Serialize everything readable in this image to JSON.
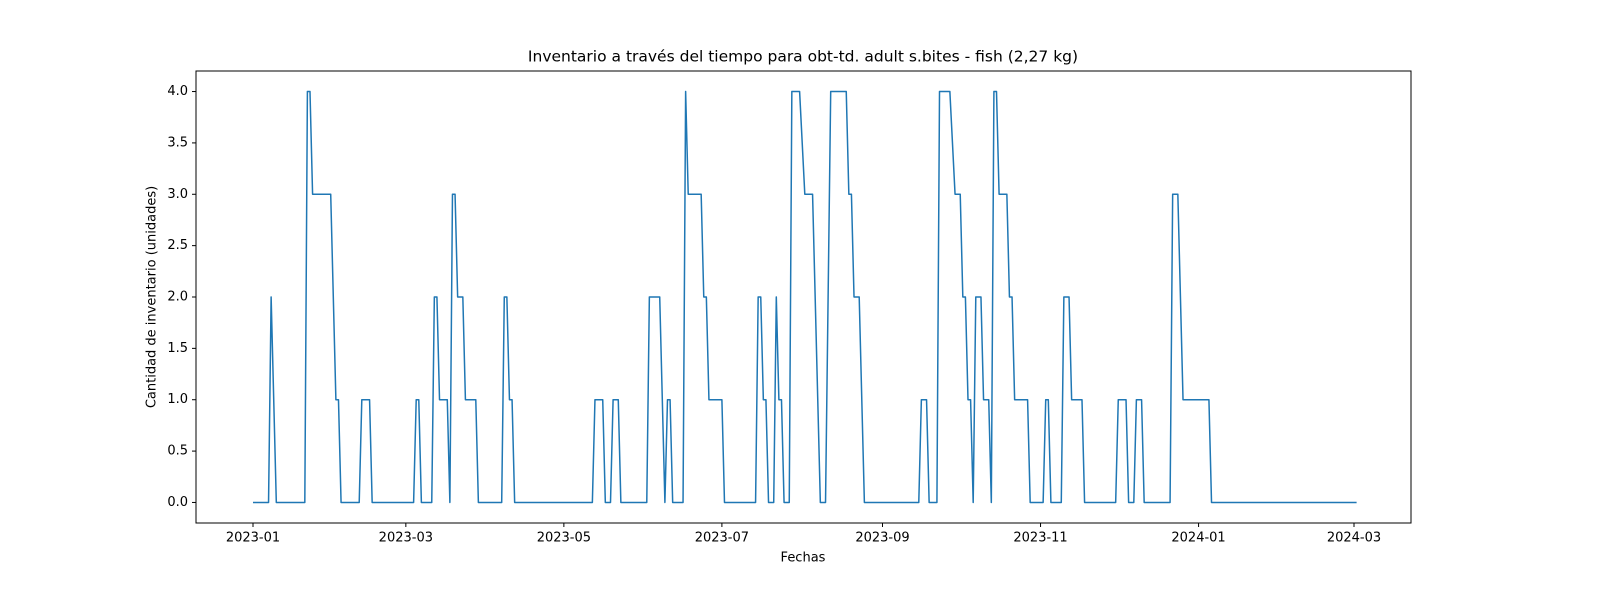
{
  "chart_data": {
    "type": "line",
    "title": "Inventario a través del tiempo para obt-td. adult s.bites - fish (2,27 kg)",
    "x_label": "Fechas",
    "y_label": "Cantidad de inventario (unidades)",
    "x": [
      "2023-01-01",
      "2023-01-07",
      "2023-01-08",
      "2023-01-10",
      "2023-01-21",
      "2023-01-22",
      "2023-01-23",
      "2023-01-24",
      "2023-01-31",
      "2023-02-02",
      "2023-02-03",
      "2023-02-04",
      "2023-02-11",
      "2023-02-12",
      "2023-02-15",
      "2023-02-16",
      "2023-03-04",
      "2023-03-05",
      "2023-03-06",
      "2023-03-07",
      "2023-03-11",
      "2023-03-12",
      "2023-03-13",
      "2023-03-14",
      "2023-03-17",
      "2023-03-18",
      "2023-03-19",
      "2023-03-20",
      "2023-03-21",
      "2023-03-23",
      "2023-03-24",
      "2023-03-28",
      "2023-03-29",
      "2023-04-07",
      "2023-04-08",
      "2023-04-09",
      "2023-04-10",
      "2023-04-11",
      "2023-04-12",
      "2023-05-12",
      "2023-05-13",
      "2023-05-16",
      "2023-05-17",
      "2023-05-19",
      "2023-05-20",
      "2023-05-22",
      "2023-05-23",
      "2023-06-02",
      "2023-06-03",
      "2023-06-07",
      "2023-06-09",
      "2023-06-10",
      "2023-06-11",
      "2023-06-12",
      "2023-06-16",
      "2023-06-17",
      "2023-06-18",
      "2023-06-23",
      "2023-06-24",
      "2023-06-25",
      "2023-06-26",
      "2023-07-01",
      "2023-07-02",
      "2023-07-14",
      "2023-07-15",
      "2023-07-16",
      "2023-07-17",
      "2023-07-18",
      "2023-07-19",
      "2023-07-21",
      "2023-07-22",
      "2023-07-23",
      "2023-07-24",
      "2023-07-25",
      "2023-07-27",
      "2023-07-28",
      "2023-07-31",
      "2023-08-02",
      "2023-08-05",
      "2023-08-08",
      "2023-08-10",
      "2023-08-12",
      "2023-08-18",
      "2023-08-19",
      "2023-08-20",
      "2023-08-21",
      "2023-08-23",
      "2023-08-25",
      "2023-09-15",
      "2023-09-16",
      "2023-09-18",
      "2023-09-19",
      "2023-09-22",
      "2023-09-23",
      "2023-09-27",
      "2023-09-29",
      "2023-10-01",
      "2023-10-02",
      "2023-10-03",
      "2023-10-04",
      "2023-10-05",
      "2023-10-06",
      "2023-10-07",
      "2023-10-09",
      "2023-10-10",
      "2023-10-12",
      "2023-10-13",
      "2023-10-14",
      "2023-10-15",
      "2023-10-16",
      "2023-10-19",
      "2023-10-20",
      "2023-10-21",
      "2023-10-22",
      "2023-10-27",
      "2023-10-28",
      "2023-11-02",
      "2023-11-03",
      "2023-11-04",
      "2023-11-05",
      "2023-11-09",
      "2023-11-10",
      "2023-11-12",
      "2023-11-13",
      "2023-11-17",
      "2023-11-18",
      "2023-11-30",
      "2023-12-01",
      "2023-12-04",
      "2023-12-05",
      "2023-12-07",
      "2023-12-08",
      "2023-12-10",
      "2023-12-11",
      "2023-12-21",
      "2023-12-22",
      "2023-12-24",
      "2023-12-26",
      "2024-01-05",
      "2024-01-06",
      "2024-03-02"
    ],
    "series": [
      {
        "color": "#1f77b4",
        "values": [
          0,
          0,
          2,
          0,
          0,
          4,
          4,
          3,
          3,
          1,
          1,
          0,
          0,
          1,
          1,
          0,
          0,
          1,
          1,
          0,
          0,
          2,
          2,
          1,
          1,
          0,
          3,
          3,
          2,
          2,
          1,
          1,
          0,
          0,
          2,
          2,
          1,
          1,
          0,
          0,
          1,
          1,
          0,
          0,
          1,
          1,
          0,
          0,
          2,
          2,
          0,
          1,
          1,
          0,
          0,
          4,
          3,
          3,
          2,
          2,
          1,
          1,
          0,
          0,
          2,
          2,
          1,
          1,
          0,
          0,
          2,
          1,
          1,
          0,
          0,
          4,
          4,
          3,
          3,
          0,
          0,
          4,
          4,
          3,
          3,
          2,
          2,
          0,
          0,
          1,
          1,
          0,
          0,
          4,
          4,
          3,
          3,
          2,
          2,
          1,
          1,
          0,
          2,
          2,
          1,
          1,
          0,
          4,
          4,
          3,
          3,
          2,
          2,
          1,
          1,
          0,
          0,
          1,
          1,
          0,
          0,
          2,
          2,
          1,
          1,
          0,
          0,
          1,
          1,
          0,
          0,
          1,
          1,
          0,
          0,
          3,
          3,
          1,
          1,
          0,
          0
        ]
      }
    ],
    "xlim": [
      "2022-12-10",
      "2024-03-23"
    ],
    "xticks": [
      {
        "value": "2023-01-01",
        "label": "2023-01"
      },
      {
        "value": "2023-03-01",
        "label": "2023-03"
      },
      {
        "value": "2023-05-01",
        "label": "2023-05"
      },
      {
        "value": "2023-07-01",
        "label": "2023-07"
      },
      {
        "value": "2023-09-01",
        "label": "2023-09"
      },
      {
        "value": "2023-11-01",
        "label": "2023-11"
      },
      {
        "value": "2024-01-01",
        "label": "2024-01"
      },
      {
        "value": "2024-03-01",
        "label": "2024-03"
      }
    ],
    "ylim": [
      -0.2,
      4.2
    ],
    "yticks": [
      {
        "value": 0,
        "label": "0.0"
      },
      {
        "value": 0.5,
        "label": "0.5"
      },
      {
        "value": 1,
        "label": "1.0"
      },
      {
        "value": 1.5,
        "label": "1.5"
      },
      {
        "value": 2,
        "label": "2.0"
      },
      {
        "value": 2.5,
        "label": "2.5"
      },
      {
        "value": 3,
        "label": "3.0"
      },
      {
        "value": 3.5,
        "label": "3.5"
      },
      {
        "value": 4,
        "label": "4.0"
      }
    ],
    "grid": false
  }
}
